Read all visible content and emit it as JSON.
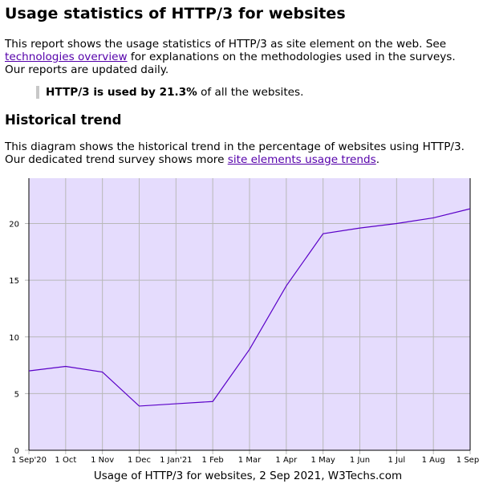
{
  "page": {
    "title": "Usage statistics of HTTP/3 for websites",
    "intro_before": "This report shows the usage statistics of HTTP/3 as site element on the web. See ",
    "intro_link": "technologies overview",
    "intro_after": " for explanations on the methodologies used in the surveys. Our reports are updated daily.",
    "stat_bold": "HTTP/3 is used by 21.3%",
    "stat_rest": " of all the websites.",
    "section_heading": "Historical trend",
    "desc_before": "This diagram shows the historical trend in the percentage of websites using HTTP/3. Our dedicated trend survey shows more ",
    "desc_link": "site elements usage trends",
    "desc_after": "."
  },
  "chart_data": {
    "type": "line",
    "title": "",
    "caption": "Usage of HTTP/3 for websites, 2 Sep 2021, W3Techs.com",
    "xlabel": "",
    "ylabel": "",
    "categories": [
      "1 Sep'20",
      "1 Oct",
      "1 Nov",
      "1 Dec",
      "1 Jan'21",
      "1 Feb",
      "1 Mar",
      "1 Apr",
      "1 May",
      "1 Jun",
      "1 Jul",
      "1 Aug",
      "1 Sep"
    ],
    "values": [
      7.0,
      7.4,
      6.9,
      3.9,
      4.1,
      4.3,
      8.9,
      14.5,
      19.1,
      19.6,
      20.0,
      20.5,
      21.3
    ],
    "ylim": [
      0,
      24
    ],
    "yticks": [
      0,
      5,
      10,
      15,
      20
    ],
    "grid": true,
    "colors": {
      "background": "#e5dcfd",
      "line": "#5a00c8",
      "grid": "#b8b8b8",
      "link": "#5500aa"
    }
  }
}
